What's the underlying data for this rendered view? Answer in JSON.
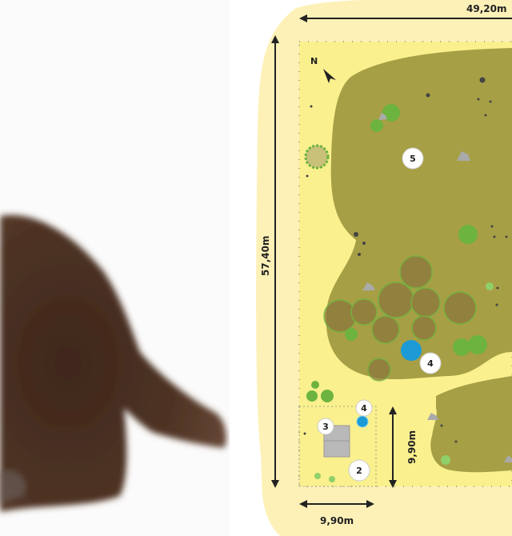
{
  "photo": {
    "subject": "brown kitten lying on white background"
  },
  "plan": {
    "width_label": "49,20m",
    "height_label": "57,40m",
    "plot_height_label": "9,90m",
    "plot_width_label": "9,90m",
    "north_label": "N",
    "markers": [
      "5",
      "4",
      "4",
      "3",
      "2"
    ],
    "colors": {
      "outer": "#fdf1b8",
      "site": "#faf08e",
      "vegetation": "#a79f45",
      "tree": "#6cb33f",
      "water": "#1b9ad6",
      "building": "#b9b9b9"
    }
  }
}
